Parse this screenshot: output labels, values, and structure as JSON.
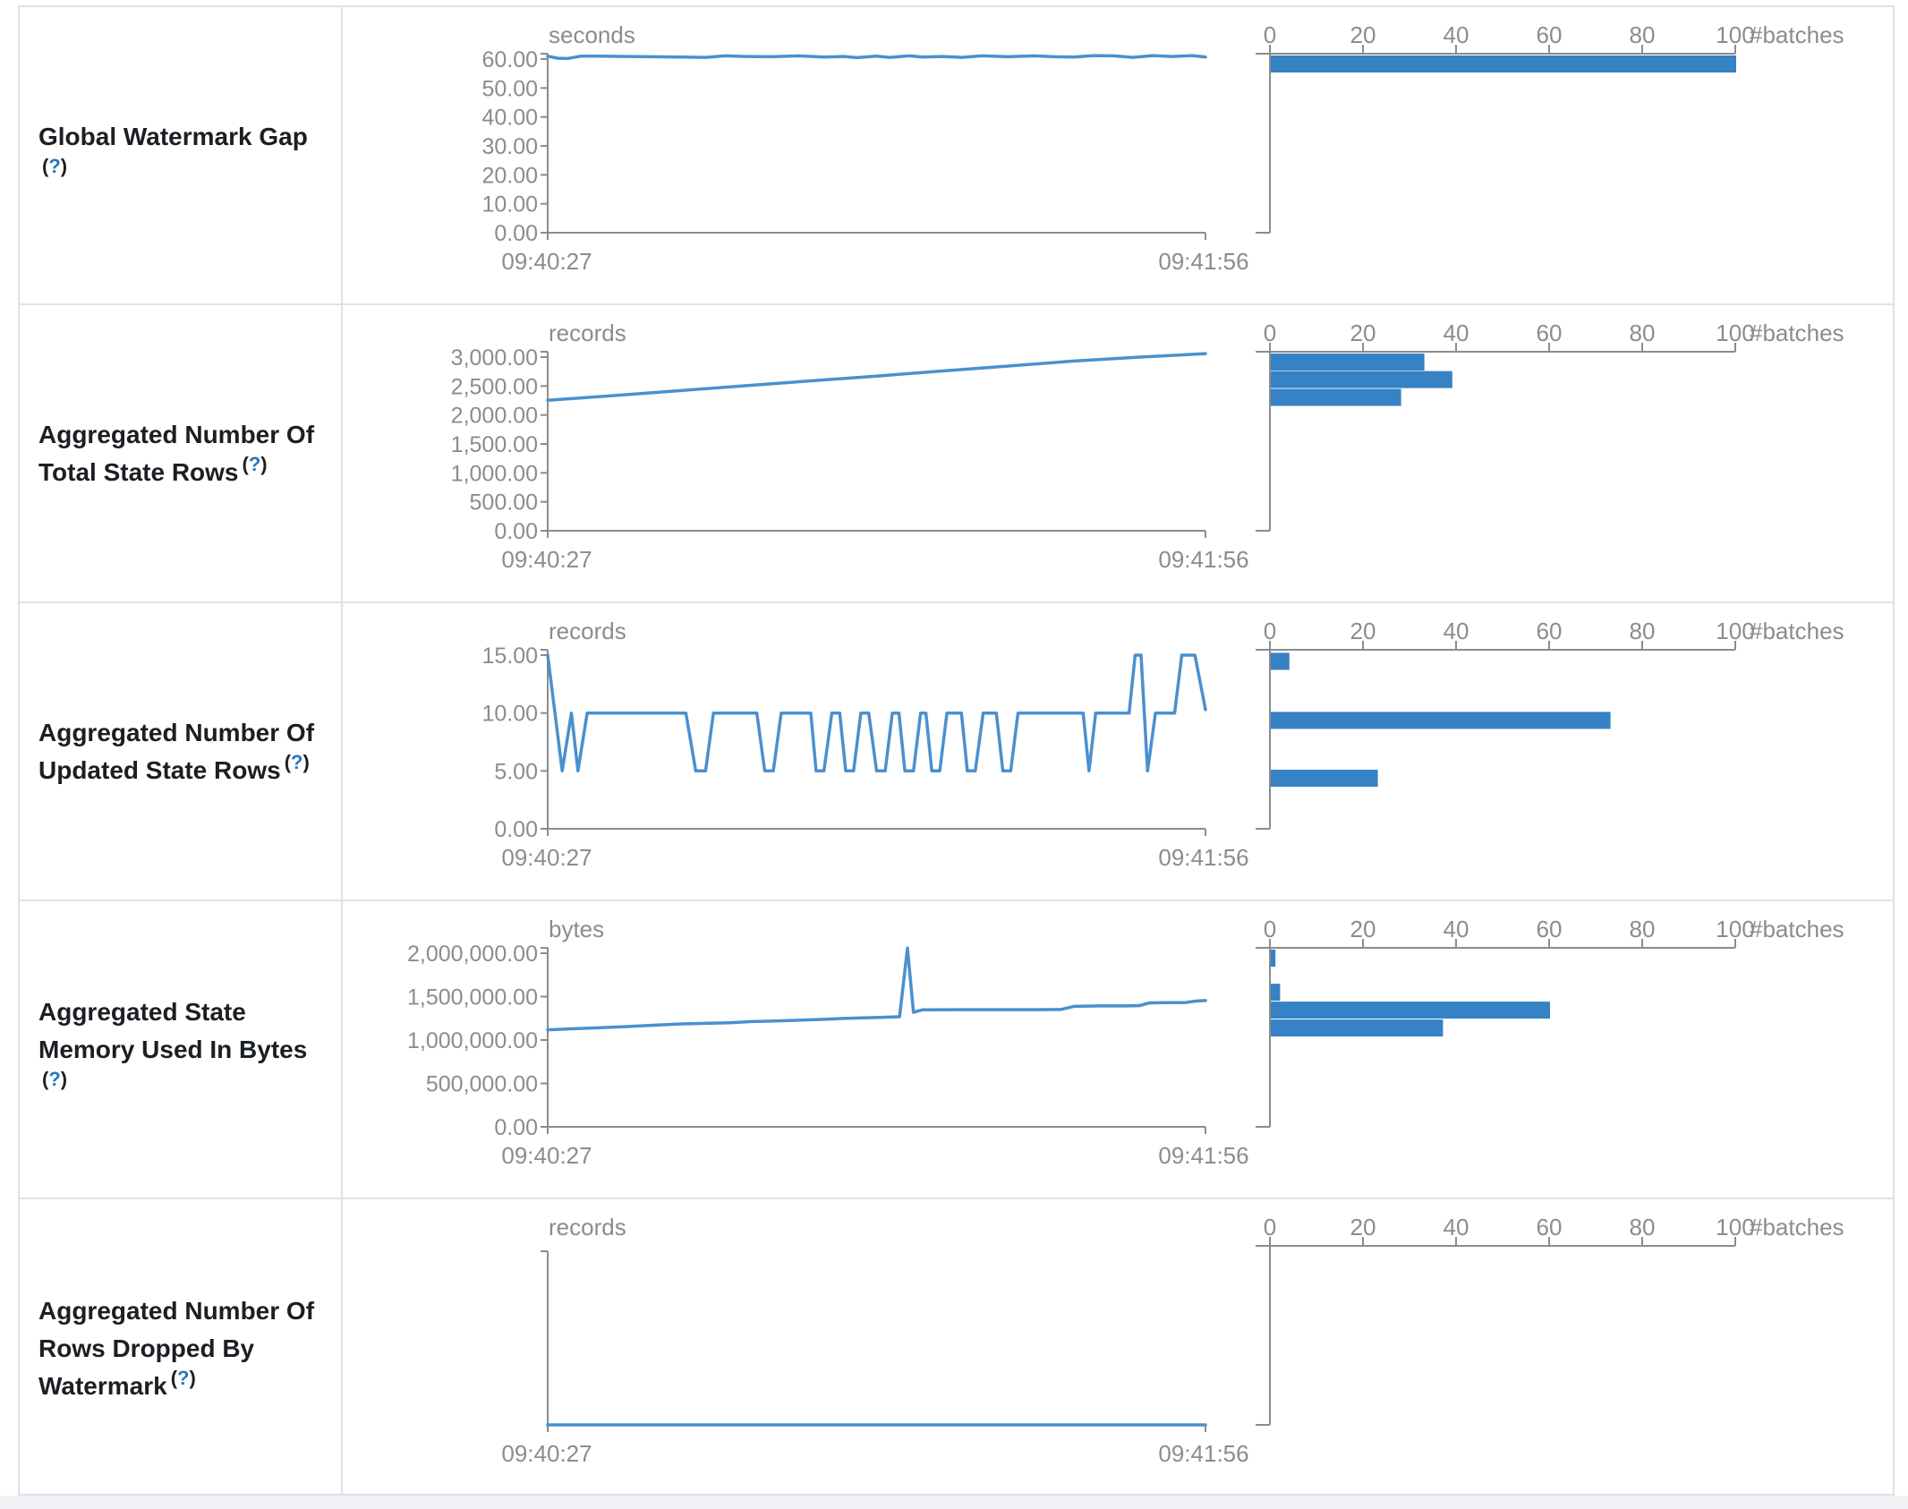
{
  "table": {
    "histogram_axis": {
      "ticks": [
        0,
        20,
        40,
        60,
        80,
        100
      ],
      "unit_label": "#batches"
    },
    "time_axis": {
      "start_label": "09:40:27",
      "end_label": "09:41:56"
    },
    "colors": {
      "bar": "#3682c4",
      "line": "#4a90ce",
      "axis": "#8c8c8c",
      "tick_text": "#8c8c8c",
      "title_text": "#1b1f23",
      "help_link": "#2678be",
      "border": "#dee2e6"
    },
    "rows": [
      {
        "title_lines": [
          "Global Watermark Gap"
        ],
        "help_label": "(?)",
        "help_own_line": true,
        "unit": "seconds",
        "y_ticks": [
          "60.00",
          "50.00",
          "40.00",
          "30.00",
          "20.00",
          "10.00",
          "0.00"
        ],
        "y_max": 60
      },
      {
        "title_lines": [
          "Aggregated Number Of",
          "Total State Rows"
        ],
        "help_label": "(?)",
        "help_own_line": false,
        "unit": "records",
        "y_ticks": [
          "3,000.00",
          "2,500.00",
          "2,000.00",
          "1,500.00",
          "1,000.00",
          "500.00",
          "0.00"
        ],
        "y_max": 3000
      },
      {
        "title_lines": [
          "Aggregated Number Of",
          "Updated State Rows"
        ],
        "help_label": "(?)",
        "help_own_line": false,
        "unit": "records",
        "y_ticks": [
          "15.00",
          "10.00",
          "5.00",
          "0.00"
        ],
        "y_max": 15
      },
      {
        "title_lines": [
          "Aggregated State",
          "Memory Used In Bytes"
        ],
        "help_label": "(?)",
        "help_own_line": true,
        "unit": "bytes",
        "y_ticks": [
          "2,000,000.00",
          "1,500,000.00",
          "1,000,000.00",
          "500,000.00",
          "0.00"
        ],
        "y_max": 2000000
      },
      {
        "title_lines": [
          "Aggregated Number Of",
          "Rows Dropped By",
          "Watermark"
        ],
        "help_label": "(?)",
        "help_own_line": false,
        "unit": "records",
        "y_ticks": [],
        "y_max": null
      }
    ]
  },
  "chart_data": [
    {
      "type": "line",
      "title": "Global Watermark Gap timeline",
      "ylabel": "seconds",
      "xlim": [
        "09:40:27",
        "09:41:56"
      ],
      "ylim": [
        0,
        60
      ],
      "series_xy": [
        [
          0,
          61.0
        ],
        [
          1.5,
          60.3
        ],
        [
          3,
          60.2
        ],
        [
          5,
          61.0
        ],
        [
          8,
          61.0
        ],
        [
          12,
          60.9
        ],
        [
          16,
          60.8
        ],
        [
          20,
          60.7
        ],
        [
          24,
          60.6
        ],
        [
          27,
          61.1
        ],
        [
          30,
          60.9
        ],
        [
          34,
          60.8
        ],
        [
          38,
          61.1
        ],
        [
          42,
          60.7
        ],
        [
          45,
          60.9
        ],
        [
          47,
          60.5
        ],
        [
          50,
          61.0
        ],
        [
          52,
          60.6
        ],
        [
          55,
          61.1
        ],
        [
          57,
          60.7
        ],
        [
          60,
          60.9
        ],
        [
          63,
          60.6
        ],
        [
          66,
          61.1
        ],
        [
          70,
          60.8
        ],
        [
          74,
          61.1
        ],
        [
          77,
          60.8
        ],
        [
          80,
          60.7
        ],
        [
          83,
          61.2
        ],
        [
          86,
          61.1
        ],
        [
          89,
          60.6
        ],
        [
          92,
          61.2
        ],
        [
          95,
          60.9
        ],
        [
          98,
          61.2
        ],
        [
          100,
          60.7
        ]
      ]
    },
    {
      "type": "bar",
      "title": "Global Watermark Gap histogram (#batches)",
      "xlabel": "#batches",
      "xlim": [
        0,
        100
      ],
      "bins": [
        {
          "bin_hi_value": 61.3,
          "count": 100
        }
      ]
    },
    {
      "type": "line",
      "title": "Aggregated Number Of Total State Rows timeline",
      "ylabel": "records",
      "xlim": [
        "09:40:27",
        "09:41:56"
      ],
      "ylim": [
        0,
        3000
      ],
      "series_xy": [
        [
          0,
          2255
        ],
        [
          10,
          2335
        ],
        [
          20,
          2420
        ],
        [
          30,
          2505
        ],
        [
          40,
          2590
        ],
        [
          50,
          2672
        ],
        [
          60,
          2760
        ],
        [
          70,
          2845
        ],
        [
          80,
          2932
        ],
        [
          90,
          3000
        ],
        [
          100,
          3060
        ]
      ]
    },
    {
      "type": "bar",
      "title": "Aggregated Number Of Total State Rows histogram (#batches)",
      "xlabel": "#batches",
      "xlim": [
        0,
        100
      ],
      "bins": [
        {
          "bin_hi_value": 3064,
          "count": 33
        },
        {
          "bin_hi_value": 2758,
          "count": 39
        },
        {
          "bin_hi_value": 2451,
          "count": 28
        }
      ]
    },
    {
      "type": "line",
      "title": "Aggregated Number Of Updated State Rows timeline",
      "ylabel": "records",
      "xlim": [
        "09:40:27",
        "09:41:56"
      ],
      "ylim": [
        0,
        15
      ],
      "series_xy": [
        [
          0,
          15
        ],
        [
          2.2,
          5
        ],
        [
          3.6,
          10
        ],
        [
          4.6,
          5
        ],
        [
          6,
          10
        ],
        [
          21,
          10
        ],
        [
          22.5,
          5
        ],
        [
          24,
          5
        ],
        [
          25.2,
          10
        ],
        [
          31.8,
          10
        ],
        [
          33,
          5
        ],
        [
          34.3,
          5
        ],
        [
          35.5,
          10
        ],
        [
          40,
          10
        ],
        [
          40.8,
          5
        ],
        [
          42,
          5
        ],
        [
          43.2,
          10
        ],
        [
          44.4,
          10
        ],
        [
          45.3,
          5
        ],
        [
          46.5,
          5
        ],
        [
          47.6,
          10
        ],
        [
          48.8,
          10
        ],
        [
          50,
          5
        ],
        [
          51.3,
          5
        ],
        [
          52.4,
          10
        ],
        [
          53.4,
          10
        ],
        [
          54.3,
          5
        ],
        [
          55.6,
          5
        ],
        [
          56.7,
          10
        ],
        [
          57.5,
          10
        ],
        [
          58.4,
          5
        ],
        [
          59.6,
          5
        ],
        [
          60.7,
          10
        ],
        [
          62.9,
          10
        ],
        [
          63.8,
          5
        ],
        [
          65,
          5
        ],
        [
          66.2,
          10
        ],
        [
          68.2,
          10
        ],
        [
          69.2,
          5
        ],
        [
          70.4,
          5
        ],
        [
          71.5,
          10
        ],
        [
          81.4,
          10
        ],
        [
          82.3,
          5
        ],
        [
          83.3,
          10
        ],
        [
          88.4,
          10
        ],
        [
          89.3,
          15
        ],
        [
          90.2,
          15
        ],
        [
          91.2,
          5
        ],
        [
          92.4,
          10
        ],
        [
          95.3,
          10
        ],
        [
          96.4,
          15
        ],
        [
          98.4,
          15
        ],
        [
          100,
          10.3
        ]
      ]
    },
    {
      "type": "bar",
      "title": "Aggregated Number Of Updated State Rows histogram (#batches)",
      "xlabel": "#batches",
      "xlim": [
        0,
        100
      ],
      "bins": [
        {
          "bin_hi_value": 15.2,
          "count": 4
        },
        {
          "bin_hi_value": 10.1,
          "count": 73
        },
        {
          "bin_hi_value": 5.1,
          "count": 23
        }
      ]
    },
    {
      "type": "line",
      "title": "Aggregated State Memory Used In Bytes timeline",
      "ylabel": "bytes",
      "xlim": [
        "09:40:27",
        "09:41:56"
      ],
      "ylim": [
        0,
        2000000
      ],
      "series_xy": [
        [
          0,
          1118000
        ],
        [
          4,
          1130000
        ],
        [
          8,
          1142000
        ],
        [
          12,
          1155000
        ],
        [
          16,
          1170000
        ],
        [
          20,
          1185000
        ],
        [
          24,
          1192000
        ],
        [
          28,
          1200000
        ],
        [
          31,
          1212000
        ],
        [
          34,
          1218000
        ],
        [
          38,
          1228000
        ],
        [
          42,
          1238000
        ],
        [
          45,
          1248000
        ],
        [
          48,
          1255000
        ],
        [
          51,
          1262000
        ],
        [
          53.5,
          1268000
        ],
        [
          54.7,
          2060000
        ],
        [
          55.6,
          1320000
        ],
        [
          57,
          1348000
        ],
        [
          62,
          1350000
        ],
        [
          68,
          1350000
        ],
        [
          74,
          1350000
        ],
        [
          78,
          1352000
        ],
        [
          80,
          1388000
        ],
        [
          84,
          1393000
        ],
        [
          88,
          1393000
        ],
        [
          90,
          1397000
        ],
        [
          91.5,
          1428000
        ],
        [
          94,
          1430000
        ],
        [
          97,
          1432000
        ],
        [
          98.5,
          1448000
        ],
        [
          100,
          1455000
        ]
      ]
    },
    {
      "type": "bar",
      "title": "Aggregated State Memory Used In Bytes histogram (#batches)",
      "xlabel": "#batches",
      "xlim": [
        0,
        100
      ],
      "bins": [
        {
          "bin_hi_value": 2060000,
          "count": 1
        },
        {
          "bin_hi_value": 1648000,
          "count": 2
        },
        {
          "bin_hi_value": 1442000,
          "count": 60
        },
        {
          "bin_hi_value": 1236000,
          "count": 37
        }
      ]
    },
    {
      "type": "line",
      "title": "Aggregated Number Of Rows Dropped By Watermark timeline",
      "ylabel": "records",
      "xlim": [
        "09:40:27",
        "09:41:56"
      ],
      "ylim": [
        0,
        null
      ],
      "series_xy": [
        [
          0,
          0
        ],
        [
          100,
          0
        ]
      ]
    },
    {
      "type": "bar",
      "title": "Aggregated Number Of Rows Dropped By Watermark histogram (#batches)",
      "xlabel": "#batches",
      "xlim": [
        0,
        100
      ],
      "bins": []
    }
  ]
}
